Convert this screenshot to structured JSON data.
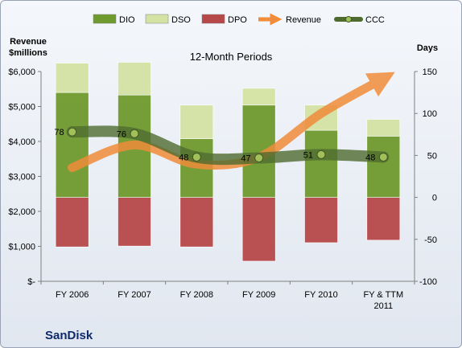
{
  "chart_data": {
    "type": "bar",
    "subtitle": "12-Month Periods",
    "company": "SanDisk",
    "ylabel_left": [
      "Revenue",
      "$millions"
    ],
    "ylabel_right": "Days",
    "categories": [
      [
        "FY 2006"
      ],
      [
        "FY 2007"
      ],
      [
        "FY 2008"
      ],
      [
        "FY 2009"
      ],
      [
        "FY 2010"
      ],
      [
        "FY & TTM",
        "2011"
      ]
    ],
    "left_axis": {
      "range": [
        0,
        6000
      ],
      "ticks": [
        0,
        1000,
        2000,
        3000,
        4000,
        5000,
        6000
      ],
      "tick_labels": [
        "$-",
        "$1,000",
        "$2,000",
        "$3,000",
        "$4,000",
        "$5,000",
        "$6,000"
      ]
    },
    "right_axis": {
      "range": [
        -100,
        150
      ],
      "ticks": [
        -100,
        -50,
        0,
        50,
        100,
        150
      ],
      "tick_labels": [
        "-100",
        "-50",
        "0",
        "50",
        "100",
        "150"
      ]
    },
    "grid": false,
    "legend_position": "top",
    "series": [
      {
        "name": "DIO",
        "kind": "bar",
        "color": "#6f9a2e",
        "values": [
          125,
          122,
          70,
          110,
          80,
          73
        ]
      },
      {
        "name": "DSO",
        "kind": "bar",
        "color": "#d4e3a4",
        "values": [
          35,
          39,
          40,
          20,
          30,
          20
        ]
      },
      {
        "name": "DPO",
        "kind": "bar",
        "color": "#b7484a",
        "values": [
          -59,
          -58,
          -59,
          -76,
          -54,
          -51
        ]
      },
      {
        "name": "Revenue",
        "kind": "line",
        "color": "#f08c3a",
        "axis": "left",
        "values": [
          3250,
          3900,
          3350,
          3550,
          4800,
          5800
        ]
      },
      {
        "name": "CCC",
        "kind": "line",
        "color": "#4f6b2f",
        "axis": "right",
        "values": [
          78,
          76,
          48,
          47,
          51,
          48
        ],
        "labels": [
          "78",
          "76",
          "48",
          "47",
          "51",
          "48"
        ]
      }
    ]
  }
}
